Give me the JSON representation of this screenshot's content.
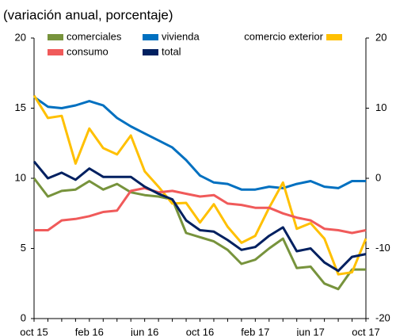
{
  "chart_data": {
    "type": "line",
    "subtitle": "(variación anual, porcentaje)",
    "categories": [
      "oct 15",
      null,
      null,
      null,
      "feb 16",
      null,
      null,
      null,
      "jun 16",
      null,
      null,
      null,
      "oct 16",
      null,
      null,
      null,
      "feb 17",
      null,
      null,
      null,
      "jun 17",
      null,
      null,
      null,
      "oct 17"
    ],
    "ylim": [
      0,
      20
    ],
    "yticks": [
      0,
      5,
      10,
      15,
      20
    ],
    "y2lim": [
      -20,
      20
    ],
    "y2ticks": [
      -20,
      -10,
      0,
      10,
      20
    ],
    "grid": false,
    "series": [
      {
        "name": "comerciales",
        "color": "#77933c",
        "values": [
          10.0,
          8.7,
          9.1,
          9.2,
          9.8,
          9.2,
          9.6,
          9.0,
          8.8,
          8.7,
          8.5,
          6.1,
          5.8,
          5.5,
          4.9,
          3.9,
          4.2,
          5.0,
          5.7,
          3.6,
          3.7,
          2.5,
          2.1,
          3.5,
          3.5
        ]
      },
      {
        "name": "vivienda",
        "color": "#0070c0",
        "values": [
          15.8,
          15.1,
          15.0,
          15.2,
          15.5,
          15.2,
          14.3,
          13.7,
          13.2,
          12.7,
          12.2,
          11.3,
          10.2,
          9.7,
          9.6,
          9.2,
          9.2,
          9.4,
          9.3,
          9.6,
          9.8,
          9.4,
          9.3,
          9.8,
          9.8
        ]
      },
      {
        "name": "comercio exterior",
        "color": "#ffc000",
        "axis": "y2",
        "values": [
          11.8,
          8.6,
          8.9,
          2.1,
          7.1,
          4.3,
          3.4,
          6.1,
          1.0,
          -1.2,
          -3.6,
          -3.5,
          -6.3,
          -3.7,
          -6.9,
          -9.2,
          -8.2,
          -4.2,
          -0.6,
          -7.2,
          -6.4,
          -8.6,
          -13.7,
          -13.4,
          -8.6
        ]
      },
      {
        "name": "consumo",
        "color": "#f05a5a",
        "values": [
          6.3,
          6.3,
          7.0,
          7.1,
          7.3,
          7.6,
          7.7,
          9.1,
          9.3,
          9.0,
          9.1,
          8.9,
          8.7,
          8.8,
          8.2,
          8.1,
          7.9,
          7.9,
          7.5,
          7.2,
          7.0,
          6.4,
          6.3,
          6.1,
          6.3
        ]
      },
      {
        "name": "total",
        "color": "#002060",
        "values": [
          11.2,
          10.0,
          10.4,
          9.9,
          10.7,
          10.1,
          10.1,
          10.1,
          9.4,
          8.9,
          8.5,
          7.0,
          6.3,
          6.2,
          5.6,
          4.9,
          5.1,
          5.9,
          6.5,
          4.8,
          5.0,
          4.0,
          3.4,
          4.4,
          4.6
        ]
      }
    ]
  }
}
